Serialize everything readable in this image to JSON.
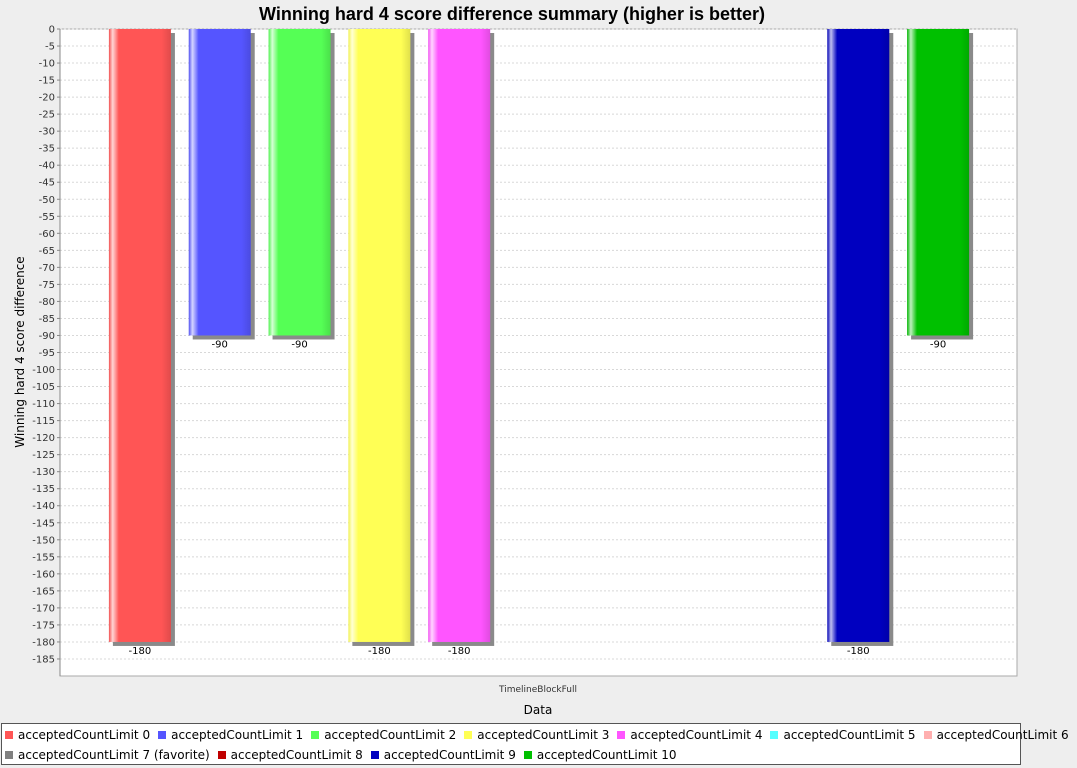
{
  "chart_data": {
    "type": "bar",
    "title": "Winning hard 4 score difference summary (higher is better)",
    "xlabel": "Data",
    "ylabel": "Winning hard 4 score difference",
    "categories": [
      "TimelineBlockFull"
    ],
    "ylim": [
      -190,
      0
    ],
    "ytick_step": 5,
    "grid": true,
    "legend_position": "bottom",
    "series": [
      {
        "name": "acceptedCountLimit 0",
        "color": "#ff5555",
        "values": [
          -180
        ]
      },
      {
        "name": "acceptedCountLimit 1",
        "color": "#5555ff",
        "values": [
          -90
        ]
      },
      {
        "name": "acceptedCountLimit 2",
        "color": "#55ff55",
        "values": [
          -90
        ]
      },
      {
        "name": "acceptedCountLimit 3",
        "color": "#ffff55",
        "values": [
          -180
        ]
      },
      {
        "name": "acceptedCountLimit 4",
        "color": "#ff55ff",
        "values": [
          -180
        ]
      },
      {
        "name": "acceptedCountLimit 5",
        "color": "#55ffff",
        "values": [
          null
        ]
      },
      {
        "name": "acceptedCountLimit 6",
        "color": "#ffafaf",
        "values": [
          null
        ]
      },
      {
        "name": "acceptedCountLimit 7 (favorite)",
        "color": "#808080",
        "values": [
          null
        ]
      },
      {
        "name": "acceptedCountLimit 8",
        "color": "#c00000",
        "values": [
          null
        ]
      },
      {
        "name": "acceptedCountLimit 9",
        "color": "#0000c0",
        "values": [
          -180
        ]
      },
      {
        "name": "acceptedCountLimit 10",
        "color": "#00c000",
        "values": [
          -90
        ]
      }
    ]
  }
}
